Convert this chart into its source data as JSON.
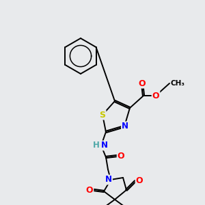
{
  "bg_color": "#e8eaec",
  "bond_color": "#000000",
  "atom_colors": {
    "S": "#c8c800",
    "N": "#0000ff",
    "O": "#ff0000",
    "H": "#4fa8a8",
    "C": "#000000"
  },
  "figsize": [
    3.0,
    3.0
  ],
  "dpi": 100
}
